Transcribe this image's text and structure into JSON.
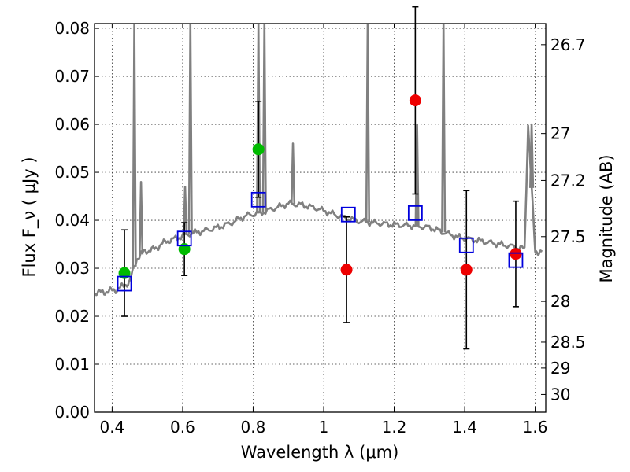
{
  "chart_data": {
    "type": "scatter",
    "xlabel": "Wavelength  λ (μm)",
    "ylabel": "Flux  F_ν  ( μJy )",
    "y2label": "Magnitude (AB)",
    "xlim": [
      0.35,
      1.63
    ],
    "ylim": [
      0.0,
      0.081
    ],
    "x_ticks": [
      0.4,
      0.6,
      0.8,
      1.0,
      1.2,
      1.4,
      1.6
    ],
    "x_tick_labels": [
      "0.4",
      "0.6",
      "0.8",
      "1",
      "1.2",
      "1.4",
      "1.6"
    ],
    "y_ticks": [
      0.0,
      0.01,
      0.02,
      0.03,
      0.04,
      0.05,
      0.06,
      0.07,
      0.08
    ],
    "y_tick_labels": [
      "0.00",
      "0.01",
      "0.02",
      "0.03",
      "0.04",
      "0.05",
      "0.06",
      "0.07",
      "0.08"
    ],
    "y2_ticks": [
      {
        "label": "26.7",
        "flux": 0.0766
      },
      {
        "label": "27",
        "flux": 0.0581
      },
      {
        "label": "27.2",
        "flux": 0.0483
      },
      {
        "label": "27.5",
        "flux": 0.0366
      },
      {
        "label": "28",
        "flux": 0.0231
      },
      {
        "label": "28.5",
        "flux": 0.0146
      },
      {
        "label": "29",
        "flux": 0.0092
      },
      {
        "label": "30",
        "flux": 0.0037
      }
    ],
    "grid": true,
    "colors": {
      "spectrum": "#808080",
      "green": "#00bb00",
      "red": "#ee0000",
      "model": "#0000dd",
      "errorbar": "#000000"
    },
    "model_spectrum": {
      "name": "template SED",
      "x": [
        0.35,
        0.37,
        0.39,
        0.41,
        0.43,
        0.45,
        0.455,
        0.47,
        0.49,
        0.52,
        0.55,
        0.58,
        0.62,
        0.66,
        0.7,
        0.74,
        0.78,
        0.82,
        0.86,
        0.9,
        0.94,
        0.98,
        1.02,
        1.06,
        1.1,
        1.14,
        1.18,
        1.22,
        1.26,
        1.3,
        1.34,
        1.38,
        1.42,
        1.46,
        1.5,
        1.54,
        1.57,
        1.58,
        1.6,
        1.62
      ],
      "y": [
        0.0249,
        0.025,
        0.0252,
        0.0255,
        0.0262,
        0.0272,
        0.0285,
        0.032,
        0.0335,
        0.034,
        0.0355,
        0.0362,
        0.0372,
        0.0378,
        0.0385,
        0.0395,
        0.041,
        0.0415,
        0.0425,
        0.0435,
        0.0432,
        0.0425,
        0.0415,
        0.0405,
        0.0398,
        0.0395,
        0.0392,
        0.039,
        0.0388,
        0.0385,
        0.0375,
        0.0365,
        0.036,
        0.0355,
        0.035,
        0.0345,
        0.034,
        0.06,
        0.0335,
        0.0335
      ]
    },
    "emission_lines": [
      {
        "x": 0.463,
        "y": 0.081
      },
      {
        "x": 0.482,
        "y": 0.048
      },
      {
        "x": 0.607,
        "y": 0.047
      },
      {
        "x": 0.622,
        "y": 0.081
      },
      {
        "x": 0.815,
        "y": 0.081
      },
      {
        "x": 0.832,
        "y": 0.081
      },
      {
        "x": 0.913,
        "y": 0.056
      },
      {
        "x": 1.125,
        "y": 0.081
      },
      {
        "x": 1.265,
        "y": 0.06
      },
      {
        "x": 1.34,
        "y": 0.081
      },
      {
        "x": 1.59,
        "y": 0.06
      }
    ],
    "series": [
      {
        "name": "green detections",
        "marker": "circle",
        "color": "#00bb00",
        "x": [
          0.435,
          0.605,
          0.815
        ],
        "y": [
          0.029,
          0.034,
          0.0548
        ],
        "err_low": [
          0.009,
          0.0055,
          0.01
        ],
        "err_high": [
          0.009,
          0.0055,
          0.01
        ]
      },
      {
        "name": "red detections",
        "marker": "circle",
        "color": "#ee0000",
        "x": [
          1.065,
          1.26,
          1.405,
          1.545
        ],
        "y": [
          0.0297,
          0.065,
          0.0297,
          0.033
        ],
        "err_low": [
          0.011,
          0.0195,
          0.0165,
          0.011
        ],
        "err_high": [
          0.011,
          0.0195,
          0.0165,
          0.011
        ]
      },
      {
        "name": "model photometry",
        "marker": "square",
        "color": "#0000dd",
        "x": [
          0.435,
          0.605,
          0.815,
          1.07,
          1.26,
          1.405,
          1.545
        ],
        "y": [
          0.0268,
          0.0362,
          0.0443,
          0.0412,
          0.0415,
          0.0348,
          0.0317
        ]
      }
    ]
  }
}
